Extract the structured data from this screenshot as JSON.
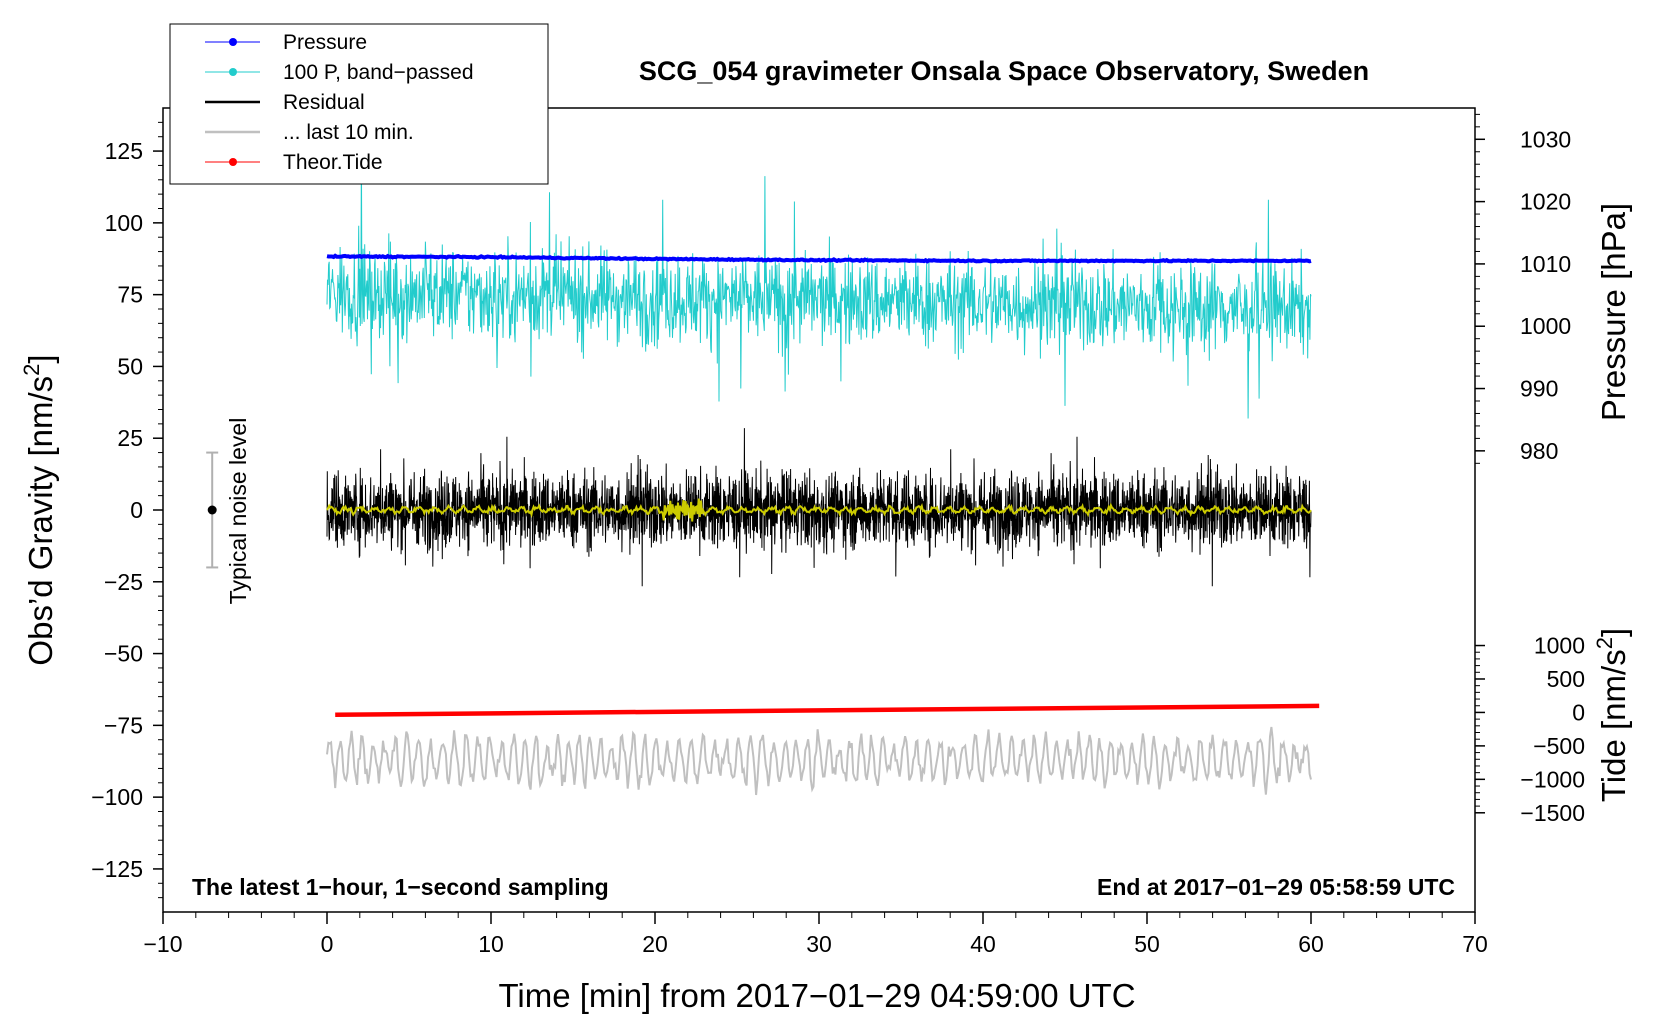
{
  "colors": {
    "pressure": "#0000ff",
    "band_passed": "#22cccc",
    "residual": "#000000",
    "last10": "#c0c0c0",
    "theor_tide": "#ff0000",
    "smooth_residual": "#cccc00",
    "noise_bar": "#b0b0b0"
  },
  "chart_data": {
    "type": "line",
    "title": "SCG_054 gravimeter Onsala Space Observatory, Sweden",
    "xlabel": "Time [min] from 2017−01−29 04:59:00 UTC",
    "ylabel_left_main": "Obs’d Gravity [nm/s",
    "ylabel_left_sup": "2",
    "ylabel_left_end": "]",
    "ylabel_right_top": "Pressure [hPa]",
    "ylabel_right_bottom_main": "Tide [nm/s",
    "ylabel_right_bottom_sup": "2",
    "ylabel_right_bottom_end": "]",
    "note_left": "The latest 1−hour, 1−second sampling",
    "note_right": "End at 2017−01−29 05:58:59 UTC",
    "noise_label": "Typical noise level",
    "xlim": [
      -10,
      70
    ],
    "ylim": [
      -140,
      140
    ],
    "x_ticks": [
      -10,
      0,
      10,
      20,
      30,
      40,
      50,
      60,
      70
    ],
    "x_tick_labels": [
      "−10",
      "0",
      "10",
      "20",
      "30",
      "40",
      "50",
      "60",
      "70"
    ],
    "y_ticks": [
      125,
      100,
      75,
      50,
      25,
      0,
      -25,
      -50,
      -75,
      -100,
      -125
    ],
    "y_tick_labels": [
      "125",
      "100",
      "75",
      "50",
      "25",
      "0",
      "−25",
      "−50",
      "−75",
      "−100",
      "−125"
    ],
    "pressure_axis": {
      "ticks": [
        980,
        990,
        1000,
        1010,
        1020,
        1030
      ],
      "tick_labels": [
        "980",
        "990",
        "1000",
        "1010",
        "1020",
        "1030"
      ],
      "gravity_at_1000hPa": 64,
      "gravity_per_hPa": 2.17
    },
    "tide_axis": {
      "ticks": [
        1000,
        500,
        0,
        -500,
        -1000,
        -1500
      ],
      "tick_labels": [
        "1000",
        "500",
        "0",
        "−500",
        "−1000",
        "−1500"
      ],
      "gravity_at_0": -70.5,
      "gravity_per_unit": 0.0233
    },
    "legend": [
      {
        "label": "Pressure",
        "color_key": "pressure",
        "marker": true
      },
      {
        "label": "100 P, band−passed",
        "color_key": "band_passed",
        "marker": true
      },
      {
        "label": "Residual",
        "color_key": "residual",
        "marker": false
      },
      {
        "label": "... last 10 min.",
        "color_key": "last10",
        "marker": false
      },
      {
        "label": "Theor.Tide",
        "color_key": "theor_tide",
        "marker": true
      }
    ],
    "series": [
      {
        "name": "Pressure",
        "unit": "hPa",
        "x": [
          0,
          10,
          20,
          30,
          40,
          50,
          60
        ],
        "values": [
          1011.2,
          1011.1,
          1010.8,
          1010.6,
          1010.5,
          1010.5,
          1010.5
        ]
      },
      {
        "name": "100 P, band−passed",
        "unit": "nm/s² (offset)",
        "x_range": [
          0,
          60
        ],
        "center": 70,
        "typical_amplitude": 10,
        "extremes": [
          107,
          33,
          29
        ]
      },
      {
        "name": "Residual",
        "unit": "nm/s²",
        "x_range": [
          0,
          60
        ],
        "center": 0,
        "typical_amplitude": 12,
        "extremes": [
          31,
          -29
        ]
      },
      {
        "name": "Smoothed residual",
        "unit": "nm/s²",
        "x_range": [
          0,
          60
        ],
        "center": 0,
        "typical_amplitude": 1
      },
      {
        "name": "... last 10 min.",
        "unit": "nm/s² (offset)",
        "x_range": [
          0,
          60
        ],
        "center": -87,
        "typical_amplitude": 8,
        "extremes": [
          -65,
          -110
        ]
      },
      {
        "name": "Theor.Tide",
        "unit": "nm/s²",
        "x": [
          0.5,
          60.5
        ],
        "values": [
          -35,
          98
        ]
      }
    ],
    "noise_bar": {
      "x": -7,
      "center": 0,
      "low": -20,
      "high": 20
    }
  }
}
